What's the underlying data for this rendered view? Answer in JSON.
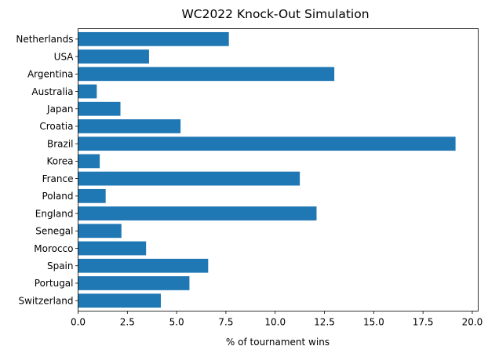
{
  "chart_data": {
    "type": "bar",
    "orientation": "horizontal",
    "title": "WC2022 Knock-Out Simulation",
    "xlabel": "% of tournament wins",
    "ylabel": "",
    "xlim": [
      0,
      20.3
    ],
    "xticks": [
      "0.0",
      "2.5",
      "5.0",
      "7.5",
      "10.0",
      "12.5",
      "15.0",
      "17.5",
      "20.0"
    ],
    "categories": [
      "Netherlands",
      "USA",
      "Argentina",
      "Australia",
      "Japan",
      "Croatia",
      "Brazil",
      "Korea",
      "France",
      "Poland",
      "England",
      "Senegal",
      "Morocco",
      "Spain",
      "Portugal",
      "Switzerland"
    ],
    "values": [
      7.65,
      3.6,
      13.0,
      0.95,
      2.15,
      5.2,
      19.15,
      1.1,
      11.25,
      1.4,
      12.1,
      2.2,
      3.45,
      6.6,
      5.65,
      4.2
    ],
    "grid": false,
    "bar_color": "#1f77b4"
  }
}
